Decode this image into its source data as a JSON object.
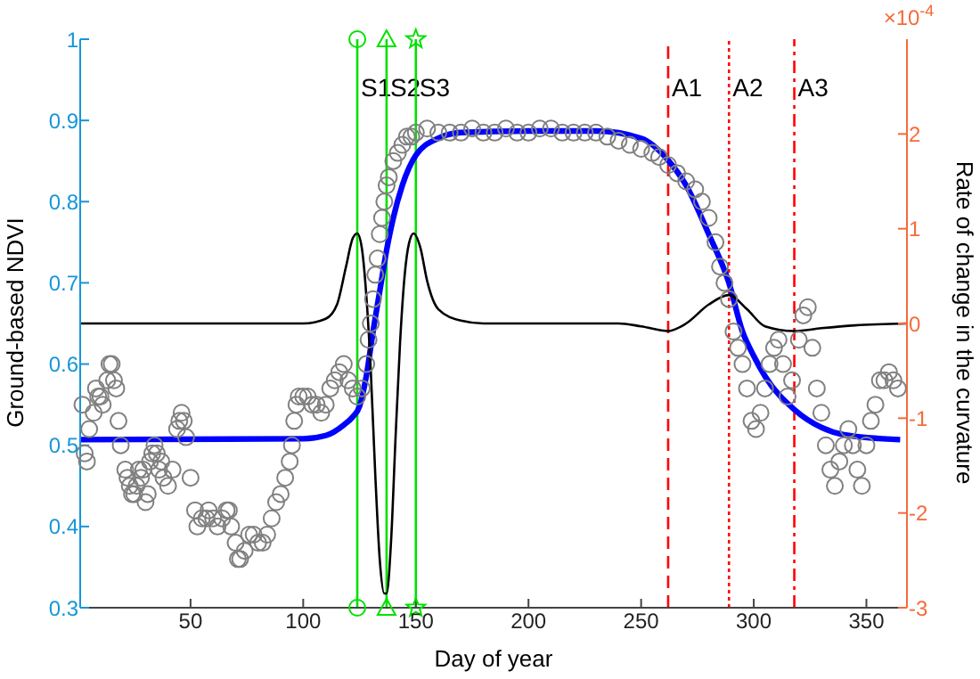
{
  "chart_data": {
    "type": "scatter",
    "xlabel": "Day of year",
    "ylabel": "Ground-based NDVI",
    "y2label": "Rate of change in the curvature",
    "xlim": [
      1,
      368
    ],
    "xticks": [
      50,
      100,
      150,
      200,
      250,
      300,
      350
    ],
    "ylim": [
      0.3,
      1
    ],
    "yticks": [
      0.3,
      0.4,
      0.5,
      0.6,
      0.7,
      0.8,
      0.9,
      1
    ],
    "y2lim": [
      -3,
      3
    ],
    "y2ticks": [
      -3,
      -2,
      -1,
      0,
      1,
      2
    ],
    "grid": false,
    "legend": false,
    "annotations": [
      "×10$^{-4}$"
    ],
    "ref_lines": [
      {
        "axis": "x",
        "value": 124,
        "label": "S1",
        "color": "#00e000",
        "line_style": "solid"
      },
      {
        "axis": "x",
        "value": 137,
        "label": "S2",
        "color": "#00e000",
        "line_style": "solid"
      },
      {
        "axis": "x",
        "value": 150,
        "label": "S3",
        "color": "#00e000",
        "line_style": "solid"
      },
      {
        "axis": "x",
        "value": 262,
        "label": "A1",
        "color": "#ff0000",
        "line_style": "dashed"
      },
      {
        "axis": "x",
        "value": 289,
        "label": "A2",
        "color": "#ff0000",
        "line_style": "dotted"
      },
      {
        "axis": "x",
        "value": 318,
        "label": "A3",
        "color": "#ff0000",
        "line_style": "dashdot"
      }
    ],
    "series": [
      {
        "color": "#00e000",
        "marker": "circle",
        "x": [
          124,
          124
        ],
        "values": [
          1,
          0.3
        ]
      },
      {
        "color": "#00e000",
        "marker": "triangle",
        "x": [
          137,
          137
        ],
        "values": [
          1,
          0.3
        ]
      },
      {
        "color": "#00e000",
        "marker": "star",
        "x": [
          150,
          150
        ],
        "values": [
          1,
          0.3
        ]
      },
      {
        "color": "#808080",
        "marker": "circle",
        "x": [
          2,
          3,
          4,
          5,
          7,
          8,
          9,
          10,
          11,
          13,
          14,
          15,
          16,
          17,
          18,
          19,
          21,
          22,
          23,
          24,
          25,
          26,
          27,
          28,
          29,
          30,
          31,
          32,
          33,
          34,
          35,
          36,
          37,
          38,
          40,
          42,
          44,
          45,
          46,
          47,
          48,
          50,
          52,
          53,
          55,
          57,
          58,
          60,
          62,
          64,
          66,
          67,
          68,
          70,
          71,
          72,
          74,
          76,
          78,
          80,
          82,
          84,
          86,
          88,
          90,
          92,
          94,
          95,
          96,
          97,
          98,
          100,
          102,
          104,
          106,
          108,
          110,
          112,
          114,
          116,
          118,
          120,
          122,
          124,
          126,
          128,
          129,
          130,
          131,
          132,
          133,
          134,
          135,
          136,
          137,
          138,
          140,
          142,
          144,
          146,
          148,
          150,
          155,
          160,
          165,
          170,
          175,
          180,
          185,
          190,
          195,
          200,
          205,
          210,
          215,
          220,
          225,
          230,
          235,
          240,
          245,
          250,
          255,
          258,
          262,
          266,
          270,
          274,
          277,
          280,
          283,
          285,
          287,
          289,
          291,
          293,
          295,
          297,
          299,
          301,
          303,
          305,
          307,
          309,
          311,
          313,
          315,
          317,
          320,
          322,
          324,
          326,
          328,
          330,
          332,
          334,
          336,
          338,
          340,
          342,
          344,
          346,
          348,
          350,
          352,
          354,
          356,
          358,
          360,
          362,
          364
        ],
        "values": [
          0.55,
          0.49,
          0.48,
          0.52,
          0.54,
          0.57,
          0.56,
          0.56,
          0.55,
          0.58,
          0.6,
          0.6,
          0.58,
          0.57,
          0.53,
          0.5,
          0.47,
          0.46,
          0.45,
          0.44,
          0.44,
          0.45,
          0.47,
          0.46,
          0.47,
          0.43,
          0.44,
          0.48,
          0.49,
          0.5,
          0.49,
          0.47,
          0.48,
          0.46,
          0.45,
          0.47,
          0.52,
          0.53,
          0.54,
          0.53,
          0.51,
          0.46,
          0.42,
          0.4,
          0.41,
          0.41,
          0.42,
          0.41,
          0.4,
          0.41,
          0.42,
          0.42,
          0.4,
          0.38,
          0.36,
          0.36,
          0.37,
          0.39,
          0.39,
          0.38,
          0.38,
          0.39,
          0.41,
          0.43,
          0.44,
          0.46,
          0.48,
          0.5,
          0.53,
          0.55,
          0.56,
          0.56,
          0.56,
          0.55,
          0.55,
          0.54,
          0.55,
          0.57,
          0.58,
          0.59,
          0.6,
          0.58,
          0.57,
          0.56,
          0.57,
          0.6,
          0.63,
          0.65,
          0.68,
          0.71,
          0.73,
          0.76,
          0.78,
          0.8,
          0.82,
          0.83,
          0.85,
          0.86,
          0.87,
          0.88,
          0.88,
          0.885,
          0.89,
          0.885,
          0.885,
          0.885,
          0.89,
          0.885,
          0.885,
          0.89,
          0.885,
          0.885,
          0.89,
          0.89,
          0.885,
          0.885,
          0.885,
          0.885,
          0.88,
          0.875,
          0.87,
          0.865,
          0.86,
          0.855,
          0.845,
          0.835,
          0.825,
          0.815,
          0.8,
          0.78,
          0.75,
          0.72,
          0.7,
          0.68,
          0.64,
          0.62,
          0.6,
          0.57,
          0.53,
          0.52,
          0.54,
          0.57,
          0.6,
          0.62,
          0.63,
          0.6,
          0.56,
          0.58,
          0.63,
          0.66,
          0.67,
          0.62,
          0.57,
          0.54,
          0.5,
          0.47,
          0.45,
          0.48,
          0.5,
          0.52,
          0.5,
          0.47,
          0.45,
          0.5,
          0.53,
          0.55,
          0.58,
          0.58,
          0.59,
          0.58,
          0.57
        ]
      },
      {
        "type": "line",
        "color": "#0000ff",
        "marker": "none",
        "x": [
          1,
          100,
          110,
          118,
          122,
          125,
          128,
          131,
          134,
          137,
          140,
          144,
          150,
          160,
          170,
          200,
          230,
          250,
          262,
          270,
          280,
          289,
          295,
          300,
          305,
          318,
          330,
          340,
          365
        ],
        "values": [
          0.507,
          0.508,
          0.512,
          0.525,
          0.535,
          0.548,
          0.585,
          0.64,
          0.69,
          0.74,
          0.78,
          0.82,
          0.857,
          0.878,
          0.885,
          0.887,
          0.887,
          0.878,
          0.851,
          0.82,
          0.76,
          0.7,
          0.64,
          0.61,
          0.585,
          0.544,
          0.522,
          0.513,
          0.507
        ]
      },
      {
        "type": "line",
        "color": "#000000",
        "marker": "none",
        "axis": "y2",
        "x": [
          1,
          100,
          110,
          115,
          119,
          122,
          124,
          126,
          128,
          130,
          132,
          134,
          136,
          137,
          139,
          141,
          143,
          145,
          147,
          149,
          152,
          155,
          160,
          170,
          180,
          240,
          250,
          262,
          270,
          280,
          289,
          297,
          305,
          318,
          330,
          345,
          368
        ],
        "values": [
          0,
          0,
          0.05,
          0.2,
          0.6,
          0.9,
          0.95,
          0.8,
          0.3,
          -0.5,
          -1.6,
          -2.5,
          -2.85,
          -2.85,
          -2.3,
          -1.2,
          -0.2,
          0.5,
          0.85,
          0.95,
          0.8,
          0.45,
          0.15,
          0.03,
          0,
          0,
          -0.03,
          -0.08,
          0,
          0.2,
          0.3,
          0.15,
          -0.03,
          -0.08,
          -0.05,
          -0.02,
          0
        ]
      }
    ]
  }
}
